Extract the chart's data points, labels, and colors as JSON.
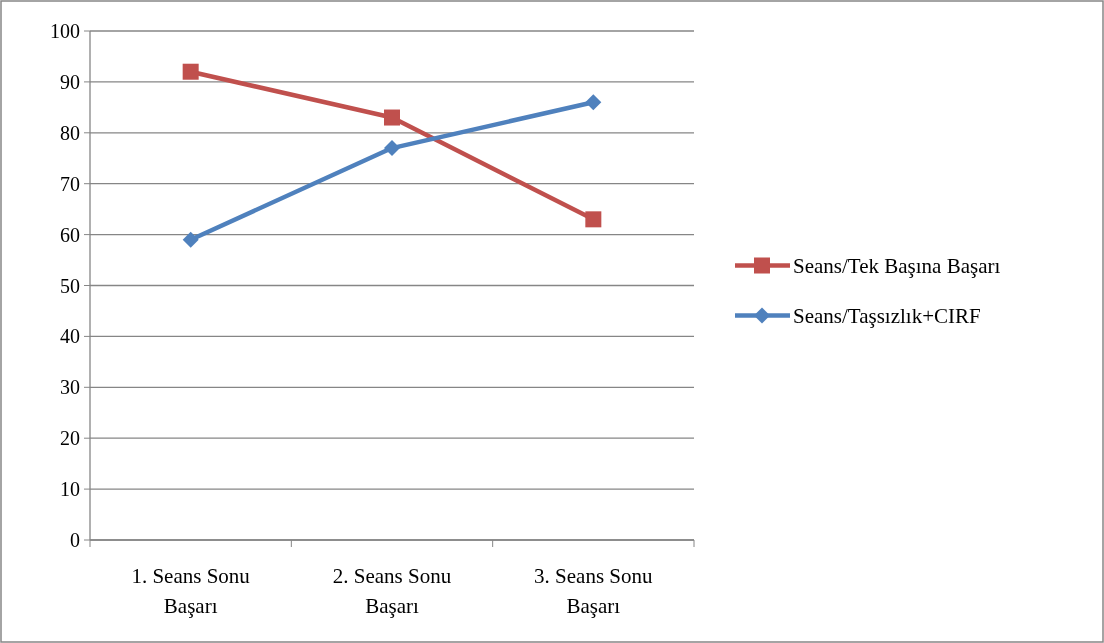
{
  "chart_data": {
    "type": "line",
    "categories": [
      "1. Seans Sonu Başarı",
      "2. Seans Sonu Başarı",
      "3. Seans Sonu Başarı"
    ],
    "series": [
      {
        "name": "Seans/Tek Başına Başarı",
        "color": "#c0504d",
        "marker": "square",
        "values": [
          92,
          83,
          63
        ]
      },
      {
        "name": "Seans/Taşsızlık+CIRF",
        "color": "#4f81bd",
        "marker": "diamond",
        "values": [
          59,
          77,
          86
        ]
      }
    ],
    "ylim": [
      0,
      100
    ],
    "yticks": [
      0,
      10,
      20,
      30,
      40,
      50,
      60,
      70,
      80,
      90,
      100
    ],
    "grid": "y",
    "legend": "right",
    "line_style": "solid"
  }
}
